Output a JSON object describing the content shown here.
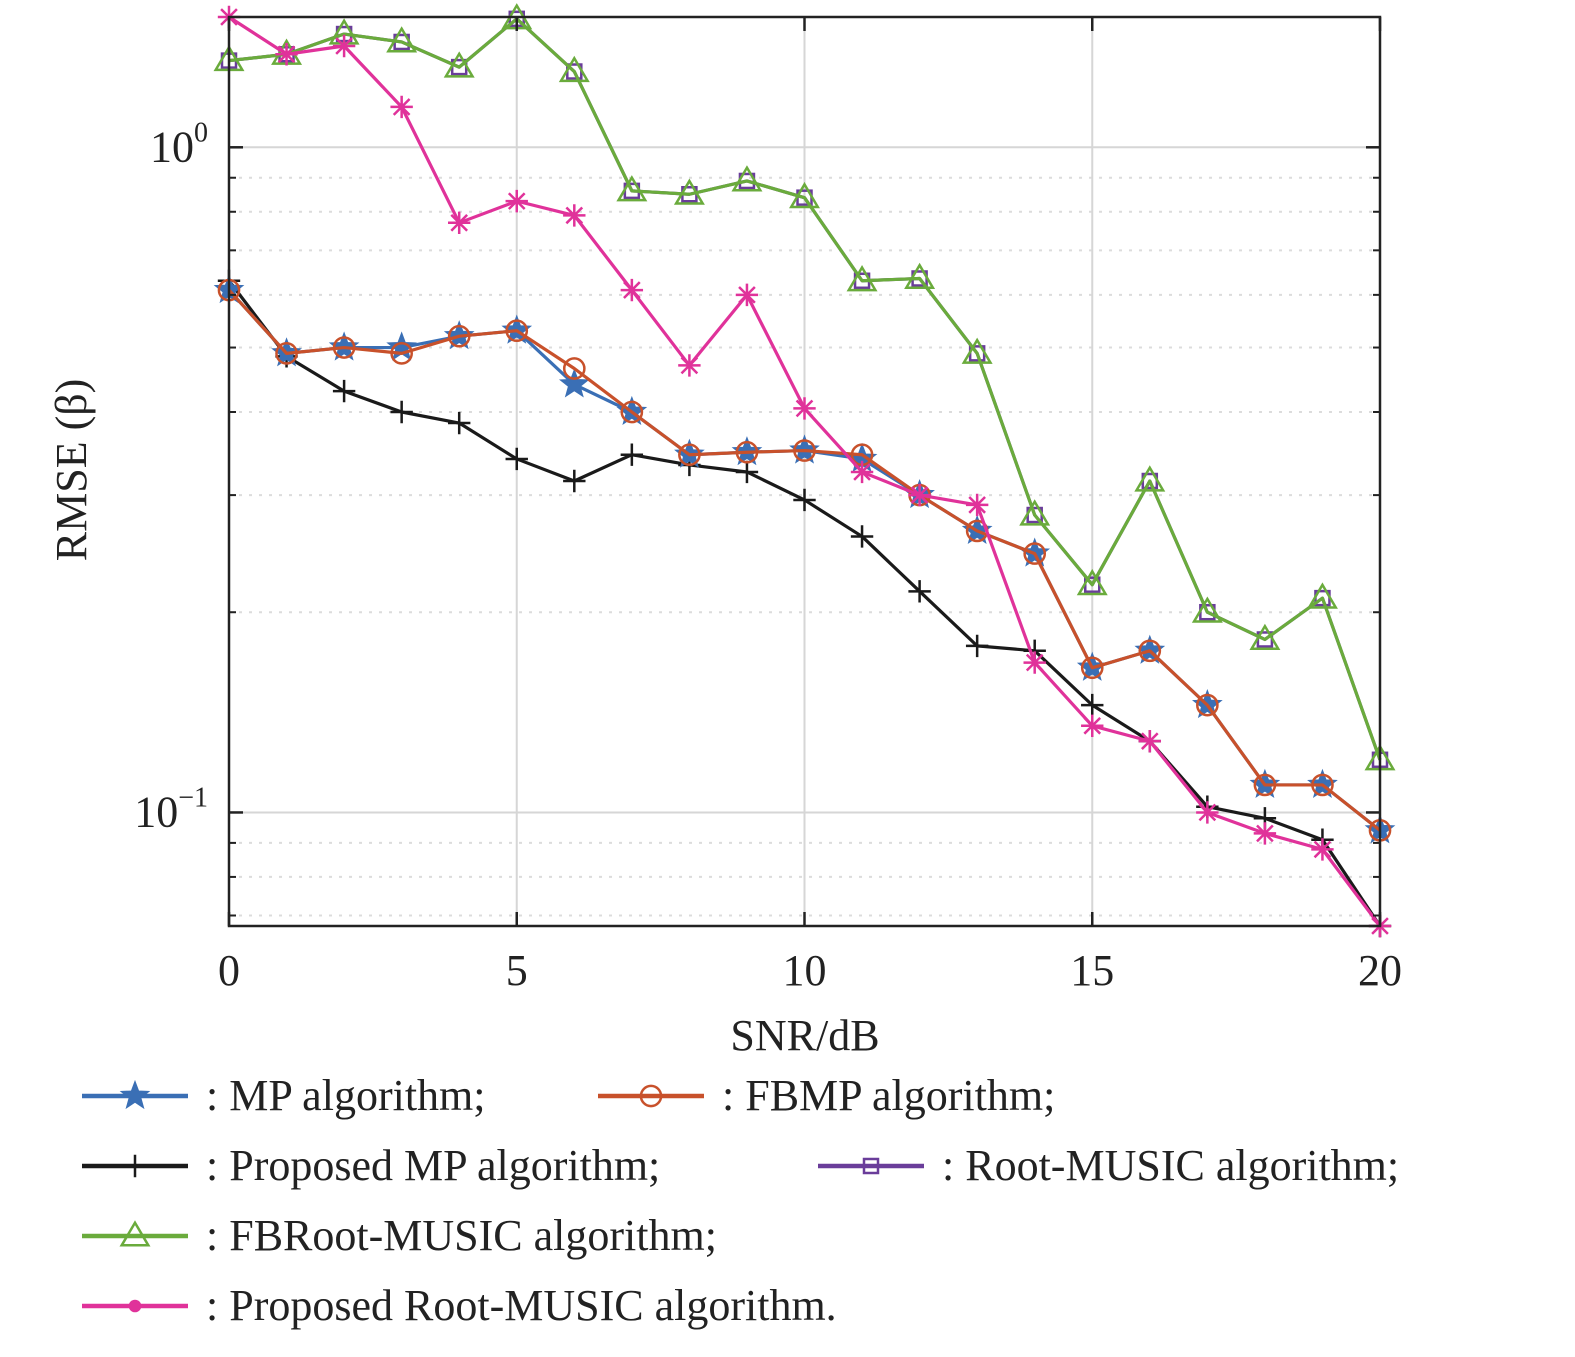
{
  "chart_data": {
    "type": "line",
    "xlabel": "SNR/dB",
    "ylabel": "RMSE (β)",
    "xlim": [
      0,
      20
    ],
    "ylim": [
      0.0675,
      1.57
    ],
    "yscale": "log",
    "grid": true,
    "x_ticks": [
      0,
      5,
      10,
      15,
      20
    ],
    "y_ticks": [
      {
        "value": 1,
        "base": "10",
        "exp": "0"
      },
      {
        "value": 0.1,
        "base": "10",
        "exp": "−1"
      }
    ],
    "legend_placement": "below",
    "x": [
      0,
      1,
      2,
      3,
      4,
      5,
      6,
      7,
      8,
      9,
      10,
      11,
      12,
      13,
      14,
      15,
      16,
      17,
      18,
      19,
      20
    ],
    "series": [
      {
        "name": ": MP algorithm;",
        "color": "#3a6fb5",
        "marker": "star",
        "values": [
          0.61,
          0.49,
          0.5,
          0.5,
          0.52,
          0.53,
          0.44,
          0.4,
          0.345,
          0.348,
          0.35,
          0.34,
          0.3,
          0.265,
          0.245,
          0.165,
          0.175,
          0.145,
          0.11,
          0.11,
          0.094
        ]
      },
      {
        "name": ": FBMP algorithm;",
        "color": "#c8512b",
        "marker": "circle",
        "values": [
          0.61,
          0.49,
          0.5,
          0.49,
          0.52,
          0.53,
          0.465,
          0.4,
          0.345,
          0.348,
          0.35,
          0.345,
          0.3,
          0.265,
          0.245,
          0.165,
          0.175,
          0.145,
          0.11,
          0.11,
          0.094
        ]
      },
      {
        "name": ": Proposed MP algorithm;",
        "color": "#1a1a1a",
        "marker": "plus",
        "values": [
          0.63,
          0.485,
          0.43,
          0.4,
          0.385,
          0.34,
          0.315,
          0.345,
          0.333,
          0.325,
          0.295,
          0.26,
          0.215,
          0.178,
          0.175,
          0.145,
          0.128,
          0.102,
          0.098,
          0.091,
          0.0675
        ]
      },
      {
        "name": ": Root-MUSIC algorithm;",
        "color": "#6a3d9a",
        "marker": "square",
        "values": [
          1.35,
          1.38,
          1.48,
          1.44,
          1.32,
          1.56,
          1.3,
          0.86,
          0.85,
          0.89,
          0.84,
          0.63,
          0.635,
          0.49,
          0.28,
          0.22,
          0.315,
          0.2,
          0.182,
          0.21,
          0.12
        ]
      },
      {
        "name": ": FBRoot-MUSIC algorithm;",
        "color": "#6aab3c",
        "marker": "triangle",
        "values": [
          1.35,
          1.38,
          1.48,
          1.44,
          1.32,
          1.56,
          1.3,
          0.86,
          0.85,
          0.89,
          0.84,
          0.63,
          0.635,
          0.49,
          0.28,
          0.22,
          0.315,
          0.2,
          0.182,
          0.21,
          0.12
        ]
      },
      {
        "name": ": Proposed Root-MUSIC algorithm.",
        "color": "#e0329a",
        "marker": "asterisk",
        "values": [
          1.57,
          1.38,
          1.42,
          1.15,
          0.77,
          0.83,
          0.79,
          0.61,
          0.47,
          0.6,
          0.405,
          0.325,
          0.3,
          0.29,
          0.168,
          0.135,
          0.128,
          0.1,
          0.093,
          0.088,
          0.0675
        ]
      }
    ]
  }
}
